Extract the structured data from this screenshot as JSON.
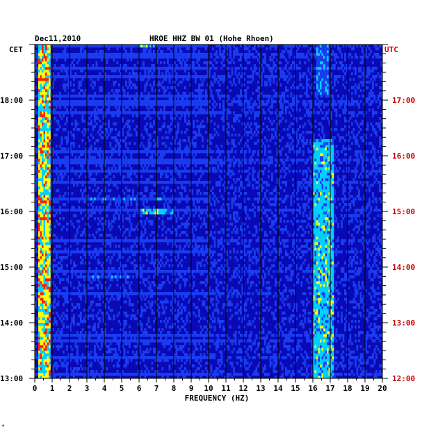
{
  "header": {
    "date": "Dec11,2010",
    "station": "HROE HHZ BW 01 (Hohe Rhoen)"
  },
  "chart_data": {
    "type": "heatmap",
    "title": "HROE HHZ BW 01 (Hohe Rhoen)",
    "date": "Dec11,2010",
    "xlabel": "FREQUENCY (HZ)",
    "xlim": [
      0,
      20
    ],
    "x_ticks": [
      "0",
      "1",
      "2",
      "3",
      "4",
      "5",
      "6",
      "7",
      "8",
      "9",
      "10",
      "11",
      "12",
      "13",
      "14",
      "15",
      "16",
      "17",
      "18",
      "19",
      "20"
    ],
    "left_axis_label": "CET",
    "right_axis_label": "UTC",
    "left_ticks": [
      "13:00",
      "14:00",
      "15:00",
      "16:00",
      "17:00",
      "18:00"
    ],
    "right_ticks": [
      "12:00",
      "13:00",
      "14:00",
      "15:00",
      "16:00",
      "17:00"
    ],
    "time_range_cet_hours": [
      13.0,
      19.0
    ],
    "colors": {
      "background": "#0a0ab4",
      "low": "#1a3cf0",
      "mid": "#00d0ff",
      "high": "#ffff00",
      "peak": "#ff2000",
      "utc_text": "#cc0000"
    },
    "features": [
      {
        "name": "strong low-frequency band",
        "freq_hz": [
          0.2,
          0.9
        ],
        "time_cet": [
          13.0,
          19.0
        ],
        "level": "high"
      },
      {
        "name": "band near 17 Hz",
        "freq_hz": [
          16.0,
          17.2
        ],
        "time_cet": [
          13.0,
          17.3
        ],
        "level": "medium"
      },
      {
        "name": "band near 17 Hz upper",
        "freq_hz": [
          16.2,
          16.9
        ],
        "time_cet": [
          18.1,
          19.0
        ],
        "level": "low"
      },
      {
        "name": "event 6-8 Hz",
        "freq_hz": [
          6.0,
          8.0
        ],
        "time_cet": [
          15.95,
          16.05
        ],
        "level": "medium"
      },
      {
        "name": "event 6-7 Hz top",
        "freq_hz": [
          6.0,
          7.0
        ],
        "time_cet": [
          18.95,
          19.0
        ],
        "level": "medium"
      },
      {
        "name": "broadband burst",
        "freq_hz": [
          2.5,
          8.0
        ],
        "time_cet": [
          16.2,
          16.25
        ],
        "level": "low"
      },
      {
        "name": "broadband burst 2",
        "freq_hz": [
          2.5,
          5.5
        ],
        "time_cet": [
          14.8,
          14.85
        ],
        "level": "low"
      }
    ]
  },
  "footer_mark": "*"
}
